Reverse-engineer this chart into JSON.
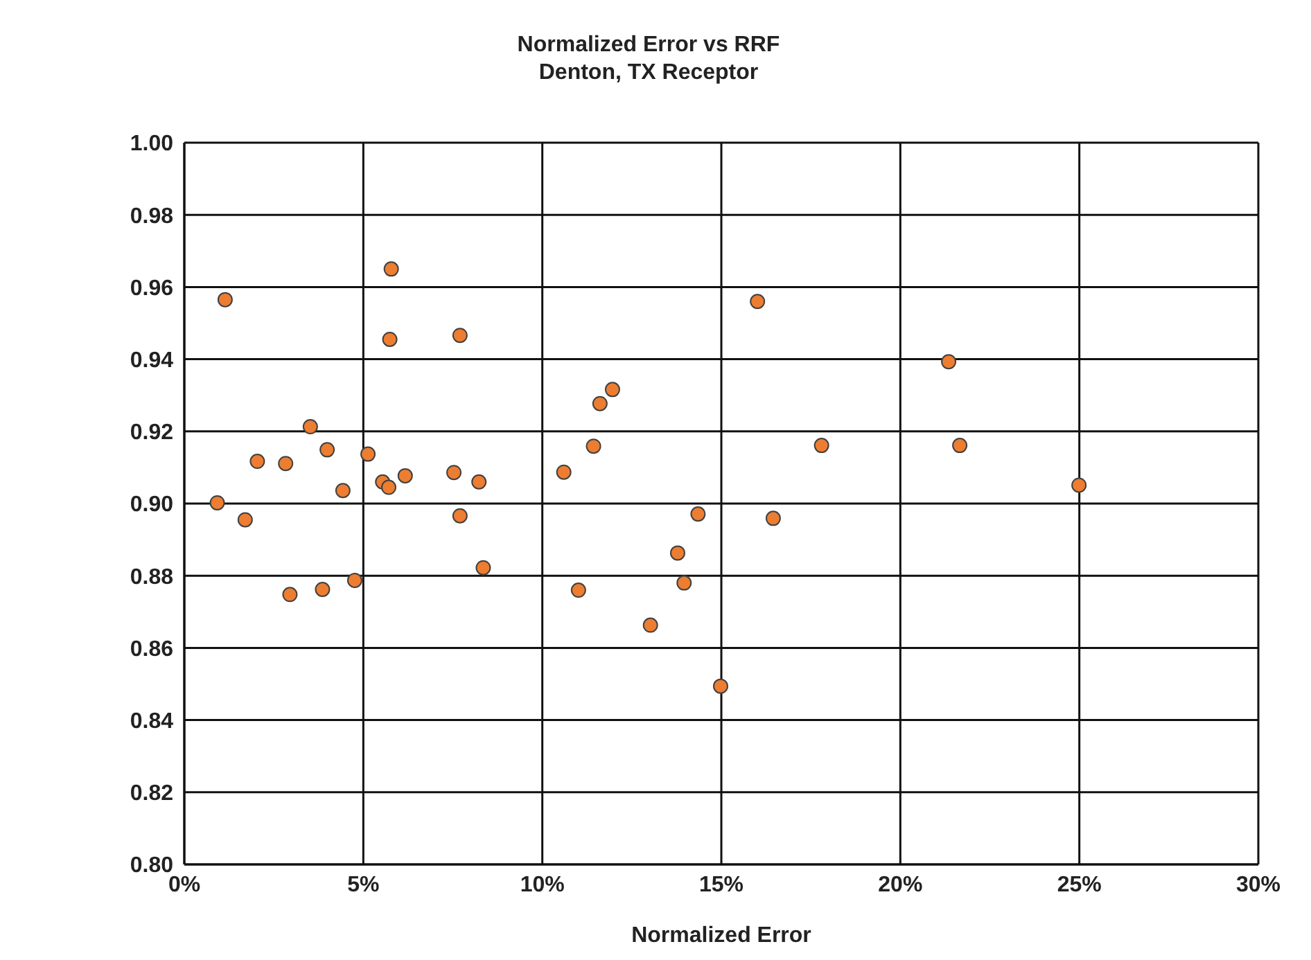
{
  "chart_data": {
    "type": "scatter",
    "title": "Normalized Error vs RRF",
    "subtitle": "Denton, TX Receptor",
    "xlabel": "Normalized Error",
    "xlim": [
      0,
      30
    ],
    "xticks": [
      {
        "value": 0,
        "label": "0%"
      },
      {
        "value": 5,
        "label": "5%"
      },
      {
        "value": 10,
        "label": "10%"
      },
      {
        "value": 15,
        "label": "15%"
      },
      {
        "value": 20,
        "label": "20%"
      },
      {
        "value": 25,
        "label": "25%"
      },
      {
        "value": 30,
        "label": "30%"
      }
    ],
    "ylim": [
      0.8,
      1.0
    ],
    "yticks": [
      {
        "value": 0.8,
        "label": "0.80"
      },
      {
        "value": 0.82,
        "label": "0.82"
      },
      {
        "value": 0.84,
        "label": "0.84"
      },
      {
        "value": 0.86,
        "label": "0.86"
      },
      {
        "value": 0.88,
        "label": "0.88"
      },
      {
        "value": 0.9,
        "label": "0.90"
      },
      {
        "value": 0.92,
        "label": "0.92"
      },
      {
        "value": 0.94,
        "label": "0.94"
      },
      {
        "value": 0.96,
        "label": "0.96"
      },
      {
        "value": 0.98,
        "label": "0.98"
      },
      {
        "value": 1.0,
        "label": "1.00"
      }
    ],
    "grid": true,
    "marker": "circle",
    "series": [
      {
        "color": "#ed7d31",
        "x": [
          5.78,
          1.14,
          5.74,
          7.7,
          11.96,
          11.61,
          3.52,
          11.43,
          3.99,
          2.04,
          2.83,
          5.13,
          10.6,
          7.53,
          6.17,
          8.23,
          5.54,
          5.71,
          4.43,
          0.92,
          1.7,
          7.7,
          14.35,
          13.78,
          8.35,
          4.76,
          13.96,
          3.86,
          2.95,
          11.01,
          13.02,
          16.01,
          21.35,
          17.8,
          21.66,
          24.99,
          16.45,
          14.98
        ],
        "values": [
          0.965,
          0.9565,
          0.9455,
          0.9466,
          0.9316,
          0.9277,
          0.9213,
          0.9159,
          0.9149,
          0.9117,
          0.9111,
          0.9137,
          0.9087,
          0.9086,
          0.9077,
          0.906,
          0.906,
          0.9045,
          0.9036,
          0.9002,
          0.8955,
          0.8966,
          0.8971,
          0.8863,
          0.8822,
          0.8787,
          0.878,
          0.8762,
          0.8748,
          0.876,
          0.8663,
          0.956,
          0.9393,
          0.9161,
          0.9161,
          0.9051,
          0.8959,
          0.8494
        ]
      }
    ]
  }
}
